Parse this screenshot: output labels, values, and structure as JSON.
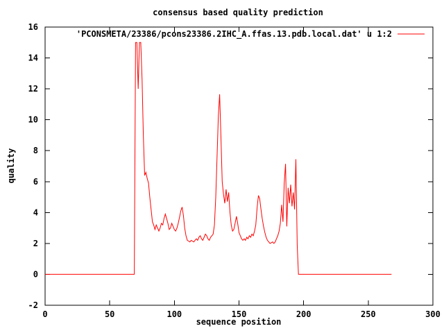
{
  "chart_data": {
    "type": "line",
    "title": "consensus based quality prediction",
    "xlabel": "sequence position",
    "ylabel": "quality",
    "xlim": [
      0,
      300
    ],
    "ylim": [
      -2,
      16
    ],
    "x_ticks": [
      0,
      50,
      100,
      150,
      200,
      250,
      300
    ],
    "y_ticks": [
      -2,
      0,
      2,
      4,
      6,
      8,
      10,
      12,
      14,
      16
    ],
    "grid": false,
    "legend_position": "top-right-inside",
    "background": "#ffffff",
    "border_color": "#000000",
    "series": [
      {
        "name": "'PCONSMETA/23386/pcons23386.2IHC_A.ffas.13.pdb.local.dat' u 1:2",
        "color": "#ff0000",
        "x_start": 0,
        "x_step": 1,
        "values": [
          0,
          0,
          0,
          0,
          0,
          0,
          0,
          0,
          0,
          0,
          0,
          0,
          0,
          0,
          0,
          0,
          0,
          0,
          0,
          0,
          0,
          0,
          0,
          0,
          0,
          0,
          0,
          0,
          0,
          0,
          0,
          0,
          0,
          0,
          0,
          0,
          0,
          0,
          0,
          0,
          0,
          0,
          0,
          0,
          0,
          0,
          0,
          0,
          0,
          0,
          0,
          0,
          0,
          0,
          0,
          0,
          0,
          0,
          0,
          0,
          0,
          0,
          0,
          0,
          0,
          0,
          0,
          0,
          0,
          0,
          15,
          15,
          12,
          15,
          15,
          12.6,
          9,
          6.4,
          6.6,
          6.2,
          5.9,
          5,
          4.2,
          3.4,
          3.2,
          2.9,
          3.2,
          3,
          2.8,
          3,
          3.3,
          3.2,
          3.6,
          3.9,
          3.6,
          3.3,
          2.9,
          3,
          3.3,
          3.1,
          2.9,
          2.8,
          3,
          3.3,
          3.7,
          4.1,
          4.35,
          3.8,
          3,
          2.5,
          2.2,
          2.15,
          2.1,
          2.2,
          2.15,
          2.1,
          2.2,
          2.3,
          2.2,
          2.4,
          2.5,
          2.3,
          2.2,
          2.4,
          2.6,
          2.5,
          2.3,
          2.2,
          2.4,
          2.5,
          2.6,
          3.2,
          5,
          7.5,
          10.2,
          11.65,
          9,
          6,
          5.2,
          4.6,
          5.5,
          4.7,
          5.3,
          4,
          3.2,
          2.8,
          2.9,
          3.3,
          3.75,
          3.3,
          2.7,
          2.5,
          2.3,
          2.2,
          2.3,
          2.2,
          2.4,
          2.3,
          2.5,
          2.4,
          2.6,
          2.5,
          2.8,
          3.2,
          4.3,
          5.1,
          4.9,
          4.2,
          3.6,
          3.1,
          2.7,
          2.4,
          2.2,
          2.1,
          2,
          2.05,
          2.1,
          2,
          2.1,
          2.3,
          2.5,
          2.8,
          3.3,
          4.5,
          3.4,
          5.9,
          7.15,
          3.1,
          5.6,
          4.6,
          5.8,
          4.4,
          5.3,
          4.2,
          7.45,
          1.9,
          0,
          0,
          0,
          0,
          0,
          0,
          0,
          0,
          0,
          0,
          0,
          0,
          0,
          0,
          0,
          0,
          0,
          0,
          0,
          0,
          0,
          0,
          0,
          0,
          0,
          0,
          0,
          0,
          0,
          0,
          0,
          0,
          0,
          0,
          0,
          0,
          0,
          0,
          0,
          0,
          0,
          0,
          0,
          0,
          0,
          0,
          0,
          0,
          0,
          0,
          0,
          0,
          0,
          0,
          0,
          0,
          0,
          0,
          0,
          0,
          0,
          0,
          0,
          0,
          0,
          0,
          0,
          0,
          0,
          0,
          0,
          0,
          0
        ]
      }
    ]
  }
}
